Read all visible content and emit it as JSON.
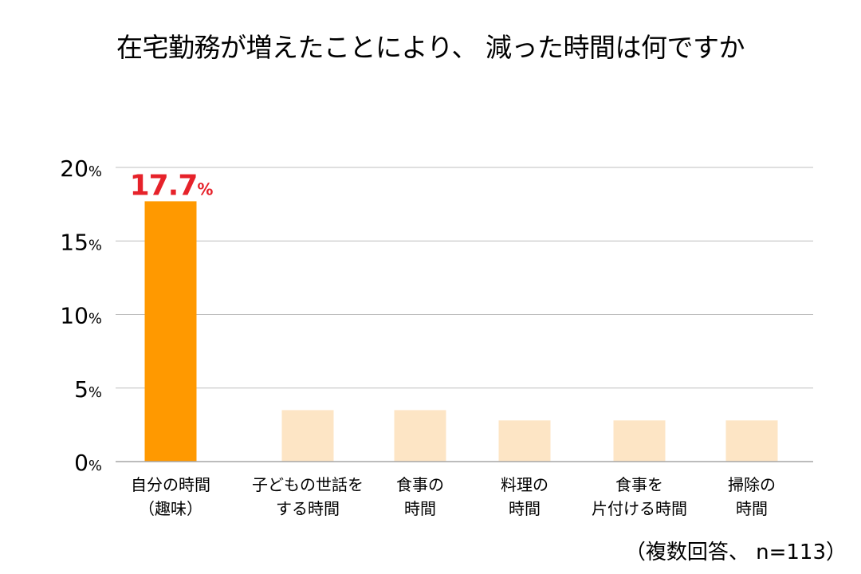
{
  "chart_data": {
    "type": "bar",
    "title": "在宅勤務が増えたことにより、 減った時間は何ですか",
    "categories": [
      [
        "自分の時間",
        "（趣味）"
      ],
      [
        "子どもの世話を",
        "する時間"
      ],
      [
        "食事の",
        "時間"
      ],
      [
        "料理の",
        "時間"
      ],
      [
        "食事を",
        "片付ける時間"
      ],
      [
        "掃除の",
        "時間"
      ]
    ],
    "values": [
      17.7,
      3.5,
      3.5,
      2.8,
      2.8,
      2.8
    ],
    "ylim": [
      0,
      20
    ],
    "yticks": [
      {
        "value": 0,
        "num": "0",
        "unit": "%"
      },
      {
        "value": 5,
        "num": "5",
        "unit": "%"
      },
      {
        "value": 10,
        "num": "10",
        "unit": "%"
      },
      {
        "value": 15,
        "num": "15",
        "unit": "%"
      },
      {
        "value": 20,
        "num": "20",
        "unit": "%"
      }
    ],
    "highlight": {
      "index": 0,
      "num": "17.7",
      "unit": "%"
    },
    "grid": true,
    "colors": {
      "highlight_bar": "#FF9900",
      "bar": "#FDE5C5",
      "highlight_label": "#E6222A",
      "grid": "#BFBFBF",
      "axis": "#A6A6A6"
    },
    "note": "（複数回答、 n=113）"
  }
}
